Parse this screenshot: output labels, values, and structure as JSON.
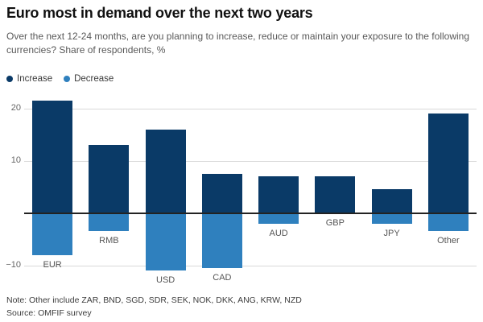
{
  "header": {
    "title": "Euro most in demand over the next two years",
    "subtitle": "Over the next 12-24 months, are you planning to increase, reduce or maintain your exposure to the following currencies? Share of respondents, %"
  },
  "footer": {
    "note": "Note: Other include ZAR, BND, SGD, SDR, SEK, NOK, DKK, ANG, KRW, NZD",
    "source": "Source: OMFIF survey"
  },
  "colors": {
    "increase": "#0a3a67",
    "decrease": "#2f80be",
    "gridline": "#d9d9d9",
    "zero_line": "#222222",
    "tick_text": "#666666",
    "category_text": "#555555"
  },
  "chart_data": {
    "type": "bar",
    "title": "Euro most in demand over the next two years",
    "ylabel": "Share of respondents, %",
    "categories": [
      "EUR",
      "RMB",
      "USD",
      "CAD",
      "AUD",
      "GBP",
      "JPY",
      "Other"
    ],
    "series": [
      {
        "name": "Increase",
        "color": "#0a3a67",
        "values": [
          21.5,
          13,
          16,
          7.5,
          7,
          7,
          4.5,
          19
        ]
      },
      {
        "name": "Decrease",
        "color": "#2f80be",
        "values": [
          -8,
          -3.5,
          -11,
          -10.5,
          -2,
          0,
          -2,
          -3.5
        ]
      }
    ],
    "ylim": [
      -12,
      22.5
    ],
    "yticks": [
      {
        "value": 20,
        "label": "20"
      },
      {
        "value": 10,
        "label": "10"
      },
      {
        "value": -10,
        "label": "−10"
      }
    ],
    "grid": true,
    "legend_position": "top-left"
  }
}
